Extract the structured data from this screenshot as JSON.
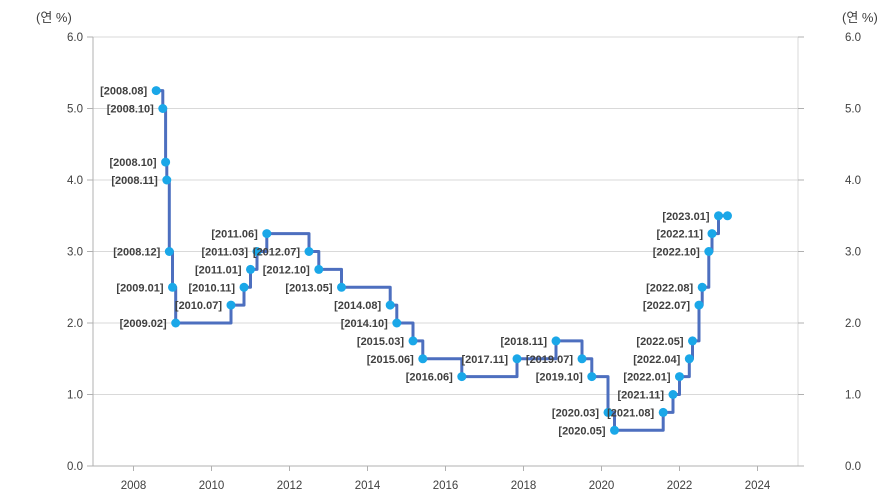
{
  "chart_data": {
    "type": "line",
    "subtype": "step-after",
    "unit_label_left": "(연 %)",
    "unit_label_right": "(연 %)",
    "ylim": [
      0.0,
      6.0
    ],
    "grid": "horizontal",
    "legend": "none",
    "x_ticks": [
      2008,
      2010,
      2012,
      2014,
      2016,
      2018,
      2020,
      2022,
      2024
    ],
    "x_tick_labels": [
      "2008",
      "2010",
      "2012",
      "2014",
      "2016",
      "2018",
      "2020",
      "2022",
      "2024"
    ],
    "y_tick_labels": [
      "0.0",
      "1.0",
      "2.0",
      "3.0",
      "4.0",
      "5.0",
      "6.0"
    ],
    "colors": {
      "line": "#4d6fbf",
      "marker": "#1aa7e8",
      "grid": "#d9d9d9",
      "axis": "#b0b0b0",
      "text": "#404040"
    },
    "series": [
      {
        "points": [
          {
            "label": "[2008.08]",
            "date": 2008.583,
            "value": 5.25
          },
          {
            "label": "[2008.10]",
            "date": 2008.75,
            "value": 5.0
          },
          {
            "label": "[2008.10]",
            "date": 2008.822,
            "value": 4.25
          },
          {
            "label": "[2008.11]",
            "date": 2008.853,
            "value": 4.0
          },
          {
            "label": "[2008.12]",
            "date": 2008.917,
            "value": 3.0
          },
          {
            "label": "[2009.01]",
            "date": 2009.0,
            "value": 2.5
          },
          {
            "label": "[2009.02]",
            "date": 2009.083,
            "value": 2.0
          },
          {
            "label": "[2010.07]",
            "date": 2010.5,
            "value": 2.25
          },
          {
            "label": "[2010.11]",
            "date": 2010.833,
            "value": 2.5
          },
          {
            "label": "[2011.01]",
            "date": 2011.0,
            "value": 2.75
          },
          {
            "label": "[2011.03]",
            "date": 2011.167,
            "value": 3.0
          },
          {
            "label": "[2011.06]",
            "date": 2011.417,
            "value": 3.25
          },
          {
            "label": "[2012.07]",
            "date": 2012.5,
            "value": 3.0
          },
          {
            "label": "[2012.10]",
            "date": 2012.75,
            "value": 2.75
          },
          {
            "label": "[2013.05]",
            "date": 2013.333,
            "value": 2.5
          },
          {
            "label": "[2014.08]",
            "date": 2014.583,
            "value": 2.25
          },
          {
            "label": "[2014.10]",
            "date": 2014.75,
            "value": 2.0
          },
          {
            "label": "[2015.03]",
            "date": 2015.167,
            "value": 1.75
          },
          {
            "label": "[2015.06]",
            "date": 2015.417,
            "value": 1.5
          },
          {
            "label": "[2016.06]",
            "date": 2016.417,
            "value": 1.25
          },
          {
            "label": "[2017.11]",
            "date": 2017.833,
            "value": 1.5
          },
          {
            "label": "[2018.11]",
            "date": 2018.833,
            "value": 1.75
          },
          {
            "label": "[2019.07]",
            "date": 2019.5,
            "value": 1.5
          },
          {
            "label": "[2019.10]",
            "date": 2019.75,
            "value": 1.25
          },
          {
            "label": "[2020.03]",
            "date": 2020.167,
            "value": 0.75
          },
          {
            "label": "[2020.05]",
            "date": 2020.333,
            "value": 0.5
          },
          {
            "label": "[2021.08]",
            "date": 2021.583,
            "value": 0.75
          },
          {
            "label": "[2021.11]",
            "date": 2021.833,
            "value": 1.0
          },
          {
            "label": "[2022.01]",
            "date": 2022.0,
            "value": 1.25
          },
          {
            "label": "[2022.04]",
            "date": 2022.25,
            "value": 1.5
          },
          {
            "label": "[2022.05]",
            "date": 2022.333,
            "value": 1.75
          },
          {
            "label": "[2022.07]",
            "date": 2022.5,
            "value": 2.25
          },
          {
            "label": "[2022.08]",
            "date": 2022.583,
            "value": 2.5
          },
          {
            "label": "[2022.10]",
            "date": 2022.75,
            "value": 3.0
          },
          {
            "label": "[2022.11]",
            "date": 2022.833,
            "value": 3.25
          },
          {
            "label": "[2023.01]",
            "date": 2023.0,
            "value": 3.5
          }
        ],
        "end": {
          "label": "",
          "date": 2023.23,
          "value": 3.5
        }
      }
    ]
  }
}
